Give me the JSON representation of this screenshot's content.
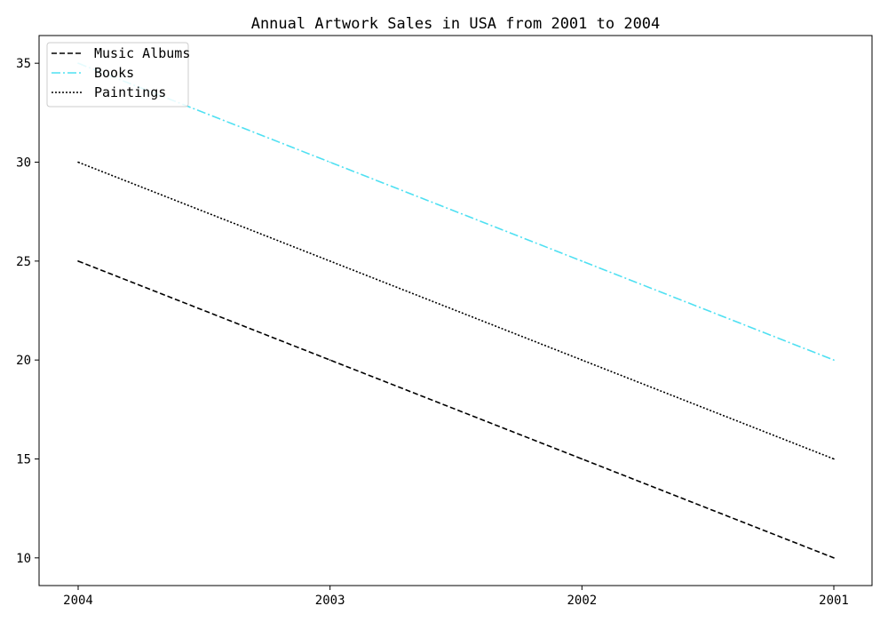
{
  "chart_data": {
    "type": "line",
    "title": "Annual Artwork Sales in USA from 2001 to 2004",
    "xlabel": "",
    "ylabel": "",
    "categories": [
      "2004",
      "2003",
      "2002",
      "2001"
    ],
    "ylim": [
      8.6,
      36.4
    ],
    "yticks": [
      10,
      15,
      20,
      25,
      30,
      35
    ],
    "grid": false,
    "legend_position": "upper-left",
    "series": [
      {
        "name": "Music Albums",
        "values": [
          25,
          20,
          15,
          10
        ],
        "color": "#000000",
        "linestyle": "dashed"
      },
      {
        "name": "Books",
        "values": [
          35,
          30,
          25,
          20
        ],
        "color": "#4fe0f2",
        "linestyle": "dashdot"
      },
      {
        "name": "Paintings",
        "values": [
          30,
          25,
          20,
          15
        ],
        "color": "#000000",
        "linestyle": "dotted"
      }
    ]
  }
}
